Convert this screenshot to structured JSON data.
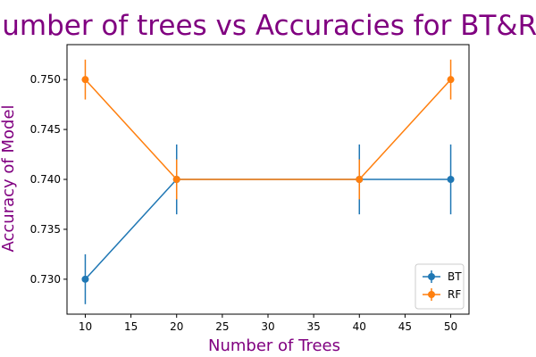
{
  "chart_data": {
    "type": "line",
    "title": "Number of trees vs Accuracies for BT&RF",
    "xlabel": "Number of Trees",
    "ylabel": "Accuracy of Model",
    "xlim": [
      8,
      52
    ],
    "ylim": [
      0.7265,
      0.7535
    ],
    "xticks": [
      10,
      15,
      20,
      25,
      30,
      35,
      40,
      45,
      50
    ],
    "yticks": [
      0.73,
      0.735,
      0.74,
      0.745,
      0.75
    ],
    "xtick_labels": [
      "10",
      "15",
      "20",
      "25",
      "30",
      "35",
      "40",
      "45",
      "50"
    ],
    "ytick_labels": [
      "0.730",
      "0.735",
      "0.740",
      "0.745",
      "0.750"
    ],
    "grid": false,
    "legend_position": "bottom-right",
    "x": [
      10,
      20,
      40,
      50
    ],
    "series": [
      {
        "name": "BT",
        "color": "#1f77b4",
        "values": [
          0.73,
          0.74,
          0.74,
          0.74
        ],
        "errors": [
          0.0025,
          0.0035,
          0.0035,
          0.0035
        ]
      },
      {
        "name": "RF",
        "color": "#ff7f0e",
        "values": [
          0.75,
          0.74,
          0.74,
          0.75
        ],
        "errors": [
          0.002,
          0.002,
          0.002,
          0.002
        ]
      }
    ]
  }
}
